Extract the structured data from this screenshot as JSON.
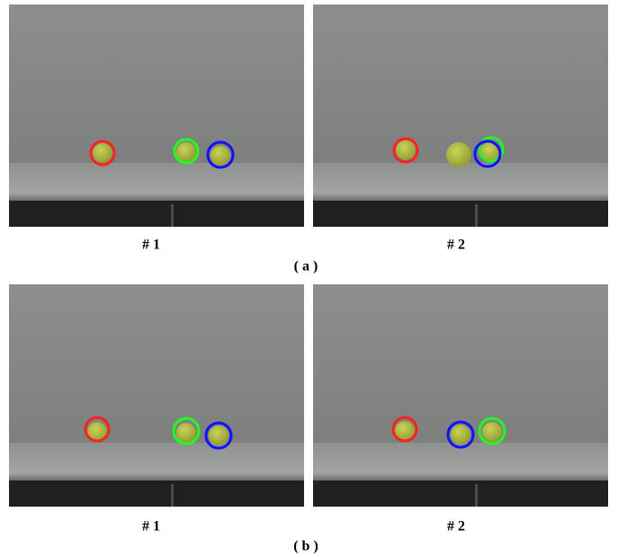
{
  "figure": {
    "panels": [
      {
        "frames": [
          {
            "label": "# 1"
          },
          {
            "label": "# 2"
          }
        ],
        "caption": "( a )"
      },
      {
        "frames": [
          {
            "label": "# 1"
          },
          {
            "label": "# 2"
          }
        ],
        "caption": "( b )"
      }
    ]
  }
}
